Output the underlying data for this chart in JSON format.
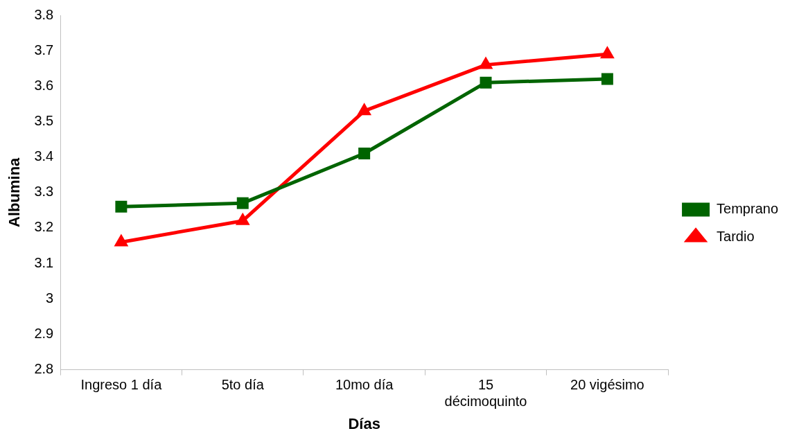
{
  "chart_data": {
    "type": "line",
    "xlabel": "Días",
    "ylabel": "Albumina",
    "categories": [
      "Ingreso 1 día",
      "5to día",
      "10mo día",
      "15 décimoquinto",
      "20 vigésimo"
    ],
    "series": [
      {
        "name": "Temprano",
        "color": "#006400",
        "marker": "square",
        "values": [
          3.26,
          3.27,
          3.41,
          3.61,
          3.62
        ]
      },
      {
        "name": "Tardio",
        "color": "#ff0000",
        "marker": "triangle",
        "values": [
          3.16,
          3.22,
          3.53,
          3.66,
          3.69
        ]
      }
    ],
    "ylim": [
      2.8,
      3.8
    ],
    "yticks": [
      2.8,
      2.9,
      3,
      3.1,
      3.2,
      3.3,
      3.4,
      3.5,
      3.6,
      3.7,
      3.8
    ],
    "grid": false,
    "legend": "right",
    "line_style": "solid"
  }
}
